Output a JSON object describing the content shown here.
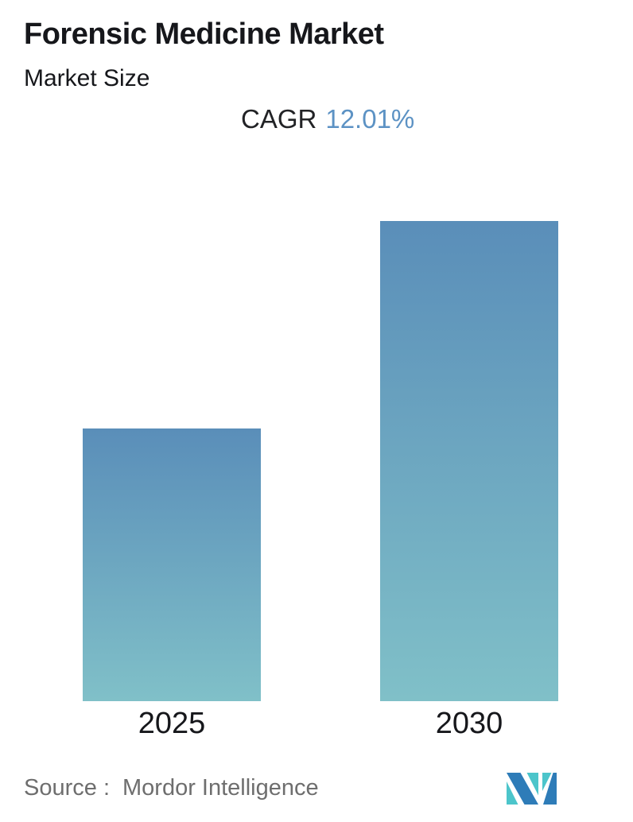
{
  "header": {
    "title": "Forensic Medicine Market",
    "subtitle": "Market Size",
    "cagr_label": "CAGR",
    "cagr_value": "12.01%"
  },
  "chart_data": {
    "type": "bar",
    "title": "Forensic Medicine Market",
    "subtitle": "Market Size",
    "categories": [
      "2025",
      "2030"
    ],
    "values": [
      1,
      1.76
    ],
    "values_are_relative": true,
    "cagr_percent": 12.01,
    "value_axis_visible": false,
    "gridlines": false,
    "bar_gradient_top": "#5a8eb9",
    "bar_gradient_bottom": "#80c0c8",
    "legend": "none"
  },
  "footer": {
    "source_label": "Source :",
    "source_value": "Mordor Intelligence",
    "logo": "mordor-intelligence-logo"
  },
  "colors": {
    "background": "#ffffff",
    "title_text": "#16171b",
    "cagr_value_text": "#5c92c4",
    "source_text": "#6e6e6e",
    "logo_blue": "#2e7cb8",
    "logo_teal": "#4cc5cb"
  }
}
